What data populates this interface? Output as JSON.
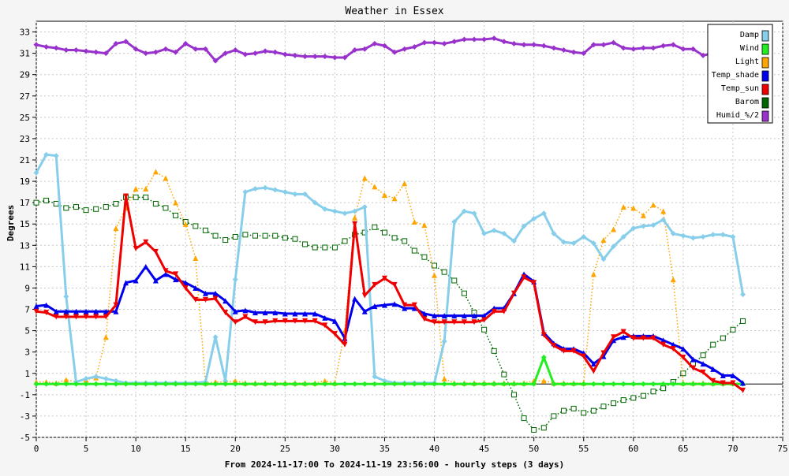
{
  "chart_data": {
    "type": "line",
    "title": "Weather in Essex",
    "xlabel": "From 2024-11-17:00 To 2024-11-19 23:56:00 - hourly steps (3 days)",
    "ylabel": "Degrees",
    "xlim": [
      0,
      75
    ],
    "ylim": [
      -5,
      34
    ],
    "x_ticks": [
      0,
      5,
      10,
      15,
      20,
      25,
      30,
      35,
      40,
      45,
      50,
      55,
      60,
      65,
      70,
      75
    ],
    "y_ticks": [
      -5,
      -3,
      -1,
      1,
      3,
      5,
      7,
      9,
      11,
      13,
      15,
      17,
      19,
      21,
      23,
      25,
      27,
      29,
      31,
      33
    ],
    "grid": true,
    "legend_position": "top-right",
    "series": [
      {
        "name": "Damp",
        "color": "#87ceeb",
        "marker": "diamond",
        "dash": "solid",
        "width": 3,
        "values": [
          19.8,
          21.5,
          21.4,
          8.2,
          0.2,
          0.5,
          0.7,
          0.5,
          0.3,
          0.1,
          0.1,
          0.1,
          0.1,
          0.1,
          0.1,
          0.1,
          0.1,
          0.2,
          4.4,
          0.3,
          9.8,
          18.0,
          18.3,
          18.4,
          18.2,
          18.0,
          17.8,
          17.8,
          17.0,
          16.4,
          16.2,
          16.0,
          16.2,
          16.6,
          0.7,
          0.3,
          0.1,
          0.1,
          0.1,
          0.1,
          0.1,
          4.0,
          15.2,
          16.2,
          16.0,
          14.1,
          14.4,
          14.1,
          13.4,
          14.8,
          15.5,
          16.0,
          14.1,
          13.3,
          13.2,
          13.8,
          13.2,
          11.7,
          12.9,
          13.8,
          14.6,
          14.8,
          14.9,
          15.4,
          14.1,
          13.9,
          13.7,
          13.8,
          14.0,
          14.0,
          13.8,
          8.4
        ]
      },
      {
        "name": "Wind",
        "color": "#22ee22",
        "marker": "diamond",
        "dash": "solid",
        "width": 3,
        "values": [
          0,
          0,
          0,
          0,
          0,
          0,
          0,
          0,
          0,
          0,
          0,
          0,
          0,
          0,
          0,
          0,
          0,
          0,
          0,
          0,
          0,
          0,
          0,
          0,
          0,
          0,
          0,
          0,
          0,
          0,
          0,
          0,
          0,
          0,
          0,
          0,
          0,
          0,
          0,
          0,
          0,
          0,
          0,
          0,
          0,
          0,
          0,
          0,
          0,
          0,
          0,
          2.5,
          0,
          0,
          0,
          0,
          0,
          0,
          0,
          0,
          0,
          0,
          0,
          0,
          0,
          0,
          0,
          0,
          0,
          0,
          0,
          0
        ]
      },
      {
        "name": "Light",
        "color": "#ffa500",
        "marker": "triangle-up",
        "dash": "dotted",
        "width": 1.5,
        "values": [
          0.2,
          0.2,
          0.1,
          0.4,
          0.2,
          0.4,
          0.6,
          4.4,
          14.6,
          16.5,
          18.3,
          18.3,
          19.9,
          19.3,
          17.0,
          15.0,
          11.8,
          0.1,
          0.2,
          0.2,
          0.3,
          0.1,
          0.1,
          0.1,
          0.1,
          0.1,
          0.1,
          0.1,
          0.1,
          0.3,
          0.1,
          5.0,
          15.6,
          19.3,
          18.5,
          17.7,
          17.4,
          18.8,
          15.2,
          14.9,
          10.2,
          0.5,
          0.1,
          0.1,
          0.1,
          0.1,
          0.1,
          0.1,
          0.1,
          0.1,
          0.3,
          0.3,
          0.1,
          0.1,
          0.1,
          0.1,
          10.3,
          13.5,
          14.5,
          16.6,
          16.5,
          15.8,
          16.8,
          16.2,
          9.8,
          0.1,
          0.1,
          0.1,
          0.1,
          0.1,
          0.1,
          0.1
        ]
      },
      {
        "name": "Temp_shade",
        "color": "#0000ee",
        "marker": "triangle-up",
        "dash": "solid",
        "width": 3,
        "values": [
          7.3,
          7.4,
          6.8,
          6.8,
          6.8,
          6.8,
          6.8,
          6.8,
          6.8,
          9.5,
          9.7,
          11.0,
          9.7,
          10.3,
          9.8,
          9.5,
          9.0,
          8.5,
          8.5,
          7.8,
          6.8,
          6.9,
          6.7,
          6.7,
          6.7,
          6.6,
          6.6,
          6.6,
          6.6,
          6.2,
          5.9,
          4.3,
          8.0,
          6.8,
          7.3,
          7.4,
          7.5,
          7.1,
          7.1,
          6.6,
          6.4,
          6.4,
          6.4,
          6.4,
          6.4,
          6.4,
          7.1,
          7.1,
          8.5,
          10.3,
          9.6,
          4.8,
          3.8,
          3.3,
          3.3,
          2.9,
          1.9,
          2.6,
          4.1,
          4.4,
          4.5,
          4.5,
          4.5,
          4.1,
          3.7,
          3.3,
          2.3,
          1.9,
          1.4,
          0.8,
          0.8,
          0.1
        ]
      },
      {
        "name": "Temp_sun",
        "color": "#ee0000",
        "marker": "triangle-down",
        "dash": "solid",
        "width": 3,
        "values": [
          6.8,
          6.7,
          6.3,
          6.3,
          6.3,
          6.3,
          6.3,
          6.3,
          7.4,
          17.6,
          12.7,
          13.3,
          12.4,
          10.6,
          10.3,
          9.0,
          7.9,
          7.9,
          8.0,
          6.7,
          5.8,
          6.3,
          5.8,
          5.8,
          5.9,
          5.9,
          5.9,
          5.9,
          5.9,
          5.5,
          4.7,
          3.7,
          15.0,
          8.3,
          9.3,
          9.9,
          9.3,
          7.4,
          7.4,
          6.1,
          5.8,
          5.8,
          5.8,
          5.8,
          5.8,
          6.0,
          6.8,
          6.8,
          8.5,
          10.0,
          9.5,
          4.6,
          3.6,
          3.1,
          3.1,
          2.6,
          1.2,
          2.9,
          4.4,
          4.9,
          4.3,
          4.3,
          4.3,
          3.7,
          3.3,
          2.5,
          1.5,
          1.1,
          0.3,
          0.1,
          0.1,
          -0.6
        ]
      },
      {
        "name": "Barom",
        "color": "#006600",
        "marker": "square",
        "dash": "dotted",
        "width": 1.5,
        "values": [
          17.0,
          17.2,
          16.9,
          16.5,
          16.6,
          16.3,
          16.4,
          16.6,
          16.9,
          17.5,
          17.5,
          17.5,
          16.9,
          16.5,
          15.8,
          15.2,
          14.8,
          14.4,
          13.9,
          13.5,
          13.8,
          14.0,
          13.9,
          13.9,
          13.9,
          13.7,
          13.6,
          13.1,
          12.8,
          12.8,
          12.8,
          13.4,
          14.0,
          14.2,
          14.7,
          14.2,
          13.7,
          13.4,
          12.5,
          11.9,
          11.1,
          10.5,
          9.7,
          8.5,
          6.7,
          5.1,
          3.1,
          0.9,
          -1.0,
          -3.2,
          -4.3,
          -4.1,
          -3.0,
          -2.5,
          -2.3,
          -2.7,
          -2.5,
          -2.1,
          -1.8,
          -1.5,
          -1.3,
          -1.1,
          -0.7,
          -0.4,
          0.2,
          1.0,
          1.9,
          2.7,
          3.7,
          4.3,
          5.1,
          5.9
        ]
      },
      {
        "name": "Humid_%/2",
        "color": "#9932cc",
        "marker": "diamond",
        "dash": "solid",
        "width": 3,
        "values": [
          31.8,
          31.6,
          31.5,
          31.3,
          31.3,
          31.2,
          31.1,
          31.0,
          31.9,
          32.1,
          31.4,
          31.0,
          31.1,
          31.4,
          31.1,
          31.9,
          31.4,
          31.4,
          30.3,
          31.0,
          31.3,
          30.9,
          31.0,
          31.2,
          31.1,
          30.9,
          30.8,
          30.7,
          30.7,
          30.7,
          30.6,
          30.6,
          31.3,
          31.4,
          31.9,
          31.7,
          31.1,
          31.4,
          31.6,
          32.0,
          32.0,
          31.9,
          32.1,
          32.3,
          32.3,
          32.3,
          32.4,
          32.1,
          31.9,
          31.8,
          31.8,
          31.7,
          31.5,
          31.3,
          31.1,
          31.0,
          31.8,
          31.8,
          32.0,
          31.5,
          31.4,
          31.5,
          31.5,
          31.7,
          31.8,
          31.4,
          31.4,
          30.8,
          31.0,
          31.1,
          31.0,
          31.1
        ]
      }
    ]
  }
}
